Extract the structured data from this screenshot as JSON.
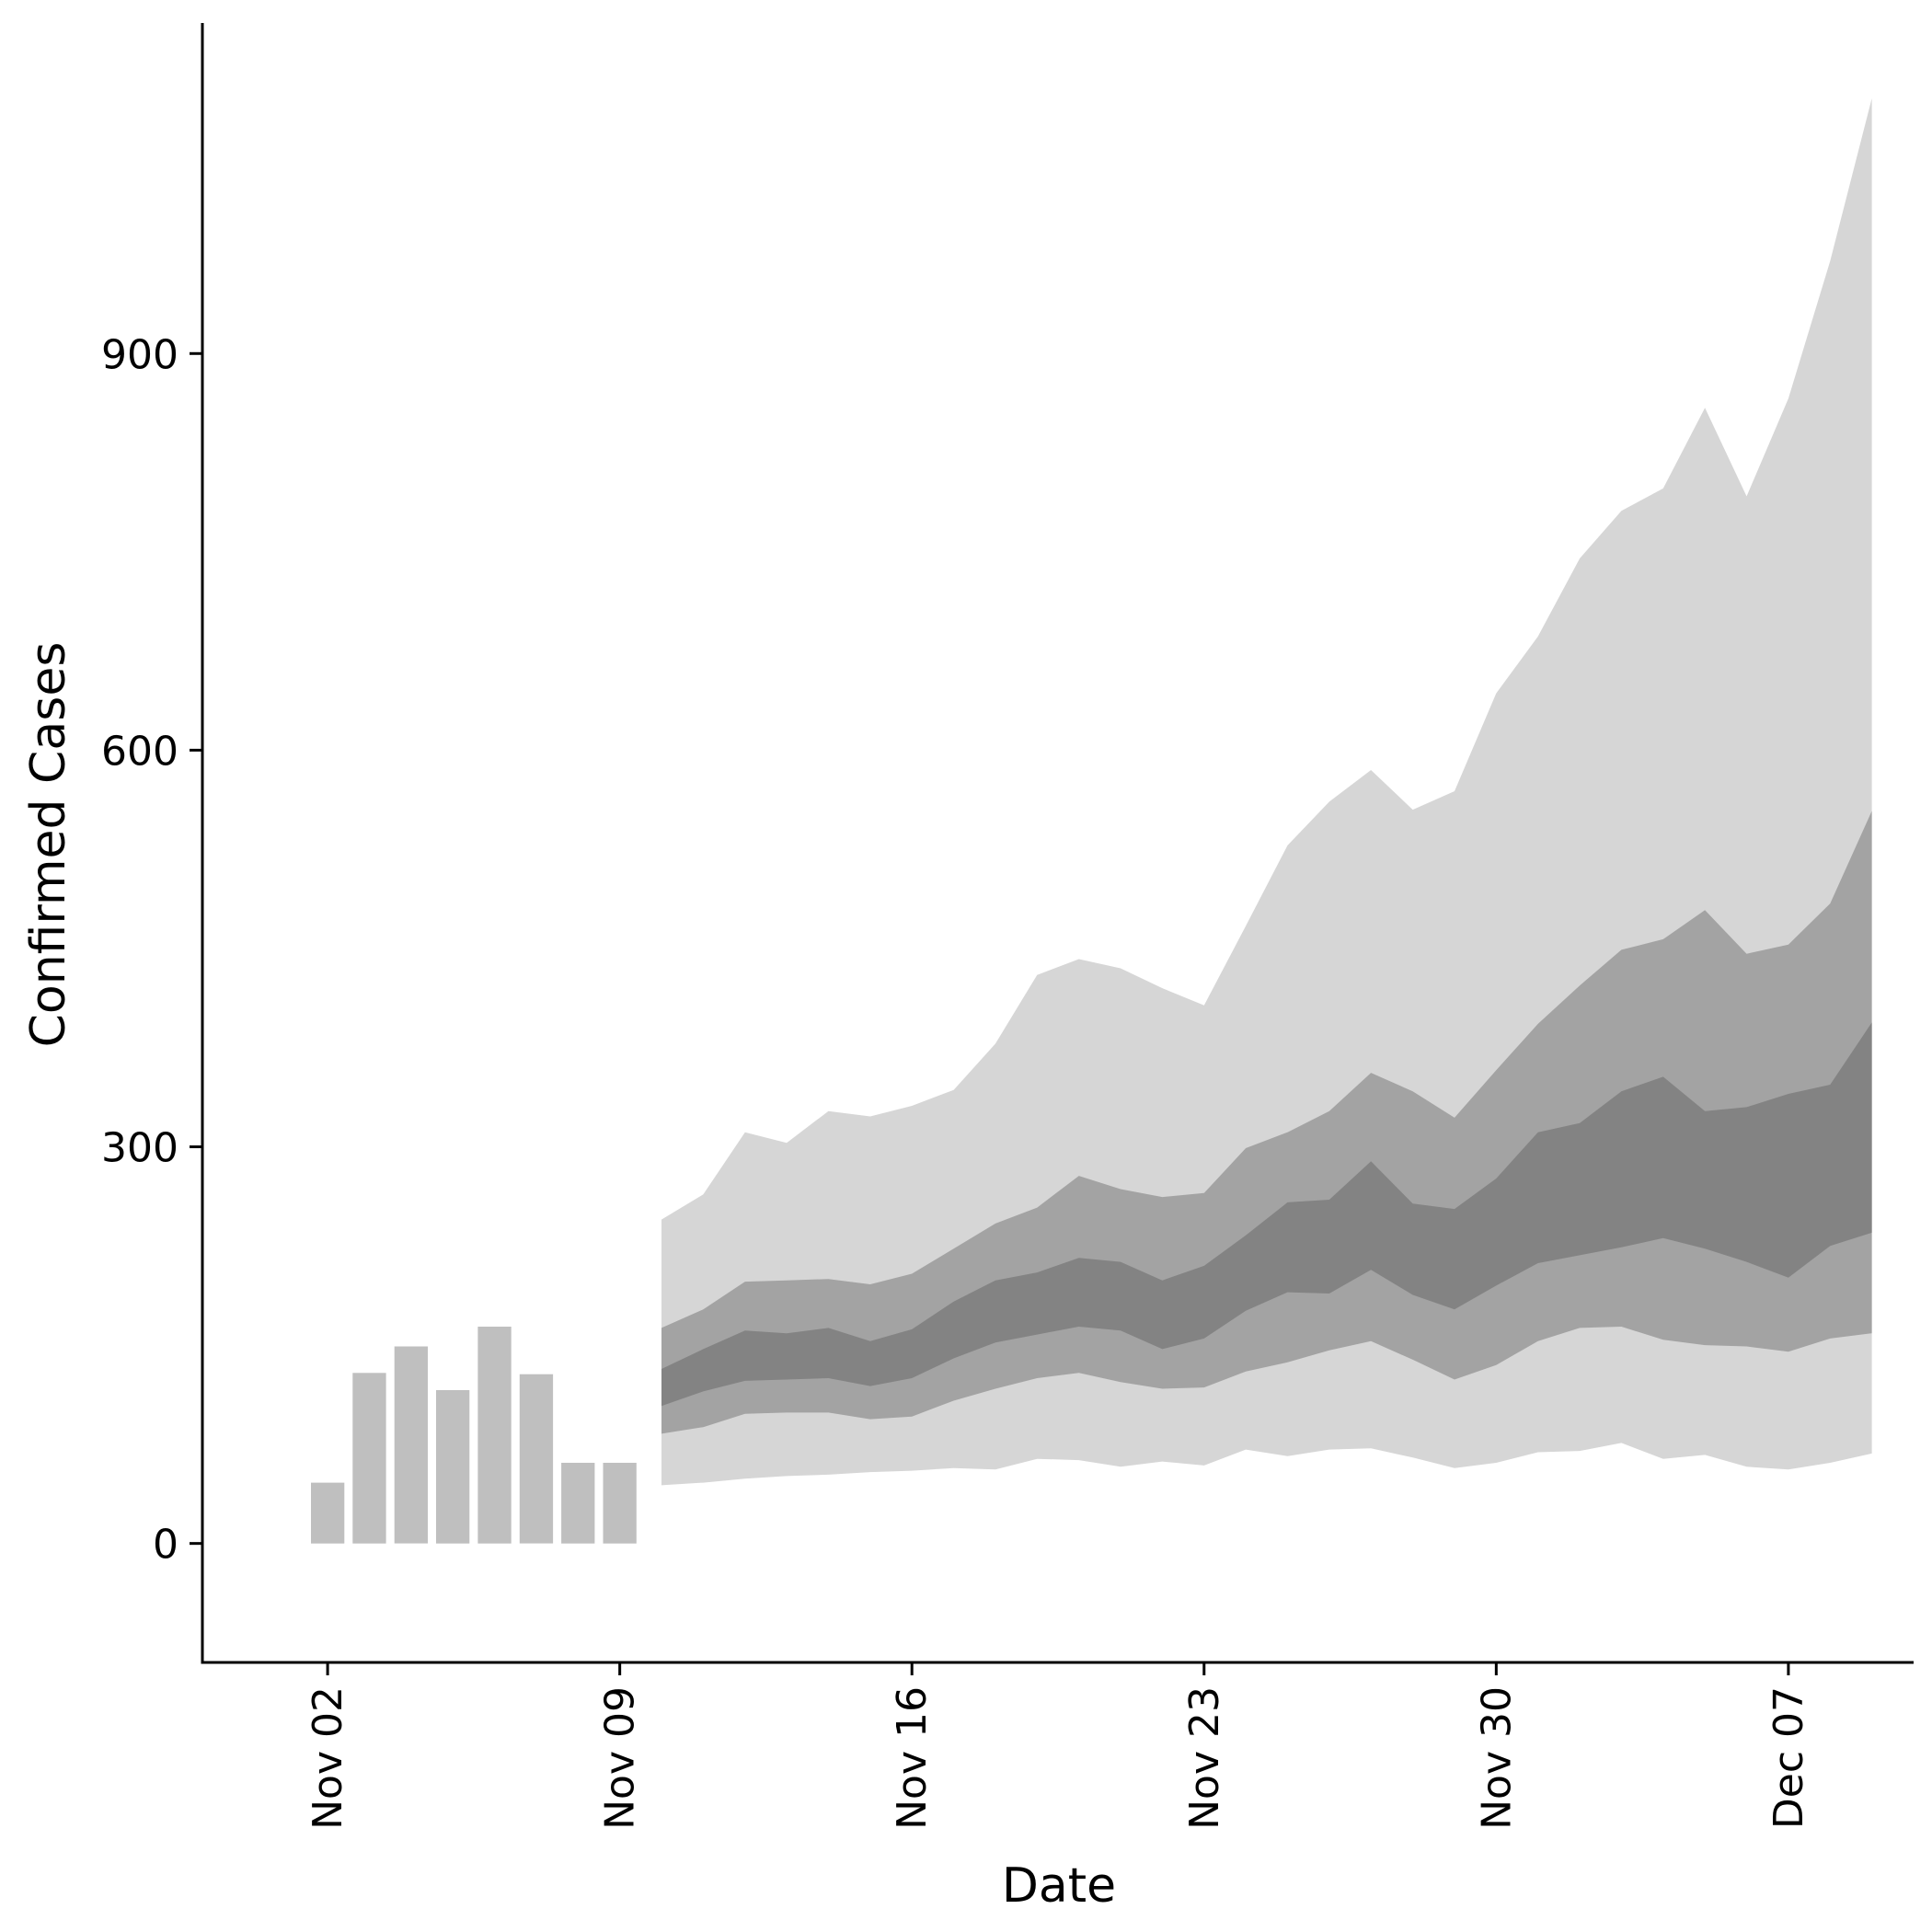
{
  "chart_data": {
    "type": "area",
    "xlabel": "Date",
    "ylabel": "Confirmed Cases",
    "ylim": [
      -90,
      1150
    ],
    "yticks": [
      0,
      300,
      600,
      900
    ],
    "xticks": [
      {
        "date": "2020-11-02",
        "label": "Nov 02"
      },
      {
        "date": "2020-11-09",
        "label": "Nov 09"
      },
      {
        "date": "2020-11-16",
        "label": "Nov 16"
      },
      {
        "date": "2020-11-23",
        "label": "Nov 23"
      },
      {
        "date": "2020-11-30",
        "label": "Nov 30"
      },
      {
        "date": "2020-12-07",
        "label": "Dec 07"
      }
    ],
    "xlim": [
      "2020-10-30",
      "2020-12-10"
    ],
    "observed": {
      "dates": [
        "2020-11-02",
        "2020-11-03",
        "2020-11-04",
        "2020-11-05",
        "2020-11-06",
        "2020-11-07",
        "2020-11-08",
        "2020-11-09"
      ],
      "values": [
        46,
        129,
        149,
        116,
        164,
        128,
        61,
        61
      ]
    },
    "forecast": {
      "dates": [
        "2020-11-10",
        "2020-11-11",
        "2020-11-12",
        "2020-11-13",
        "2020-11-14",
        "2020-11-15",
        "2020-11-16",
        "2020-11-17",
        "2020-11-18",
        "2020-11-19",
        "2020-11-20",
        "2020-11-21",
        "2020-11-22",
        "2020-11-23",
        "2020-11-24",
        "2020-11-25",
        "2020-11-26",
        "2020-11-27",
        "2020-11-28",
        "2020-11-29",
        "2020-11-30",
        "2020-12-01",
        "2020-12-02",
        "2020-12-03",
        "2020-12-04",
        "2020-12-05",
        "2020-12-06",
        "2020-12-07",
        "2020-12-08",
        "2020-12-09"
      ],
      "bands": [
        {
          "color": "#d6d6d6",
          "lower": [
            44,
            46,
            49,
            51,
            52,
            54,
            55,
            57,
            56,
            64,
            63,
            58,
            62,
            59,
            71,
            66,
            71,
            72,
            65,
            57,
            61,
            69,
            70,
            76,
            64,
            67,
            58,
            56,
            61,
            68
          ],
          "upper": [
            245,
            264,
            311,
            303,
            327,
            323,
            331,
            343,
            378,
            430,
            442,
            435,
            420,
            407,
            467,
            528,
            561,
            585,
            555,
            569,
            643,
            686,
            745,
            781,
            798,
            859,
            792,
            866,
            970,
            1093
          ]
        },
        {
          "color": "#a3a3a3",
          "lower": [
            83,
            88,
            98,
            99,
            99,
            94,
            96,
            108,
            117,
            125,
            129,
            122,
            117,
            118,
            130,
            137,
            146,
            153,
            139,
            124,
            135,
            153,
            163,
            164,
            154,
            150,
            149,
            145,
            155,
            159
          ],
          "upper": [
            163,
            177,
            198,
            199,
            200,
            196,
            204,
            223,
            242,
            254,
            278,
            268,
            262,
            265,
            299,
            311,
            327,
            356,
            342,
            322,
            358,
            393,
            422,
            449,
            457,
            479,
            446,
            453,
            484,
            554
          ]
        },
        {
          "color": "#838383",
          "lower": [
            104,
            115,
            123,
            124,
            125,
            119,
            125,
            140,
            152,
            158,
            164,
            161,
            147,
            155,
            176,
            190,
            189,
            207,
            188,
            177,
            195,
            212,
            218,
            224,
            231,
            223,
            213,
            201,
            225,
            235
          ],
          "upper": [
            132,
            147,
            161,
            159,
            163,
            153,
            162,
            183,
            199,
            205,
            216,
            213,
            199,
            210,
            233,
            258,
            260,
            289,
            257,
            253,
            276,
            311,
            318,
            342,
            353,
            327,
            330,
            340,
            347,
            394
          ]
        }
      ]
    },
    "colors": {
      "observed_bar": "#bfbfbf",
      "axis": "#000000",
      "background": "#ffffff"
    },
    "grid": false,
    "legend": "none"
  }
}
